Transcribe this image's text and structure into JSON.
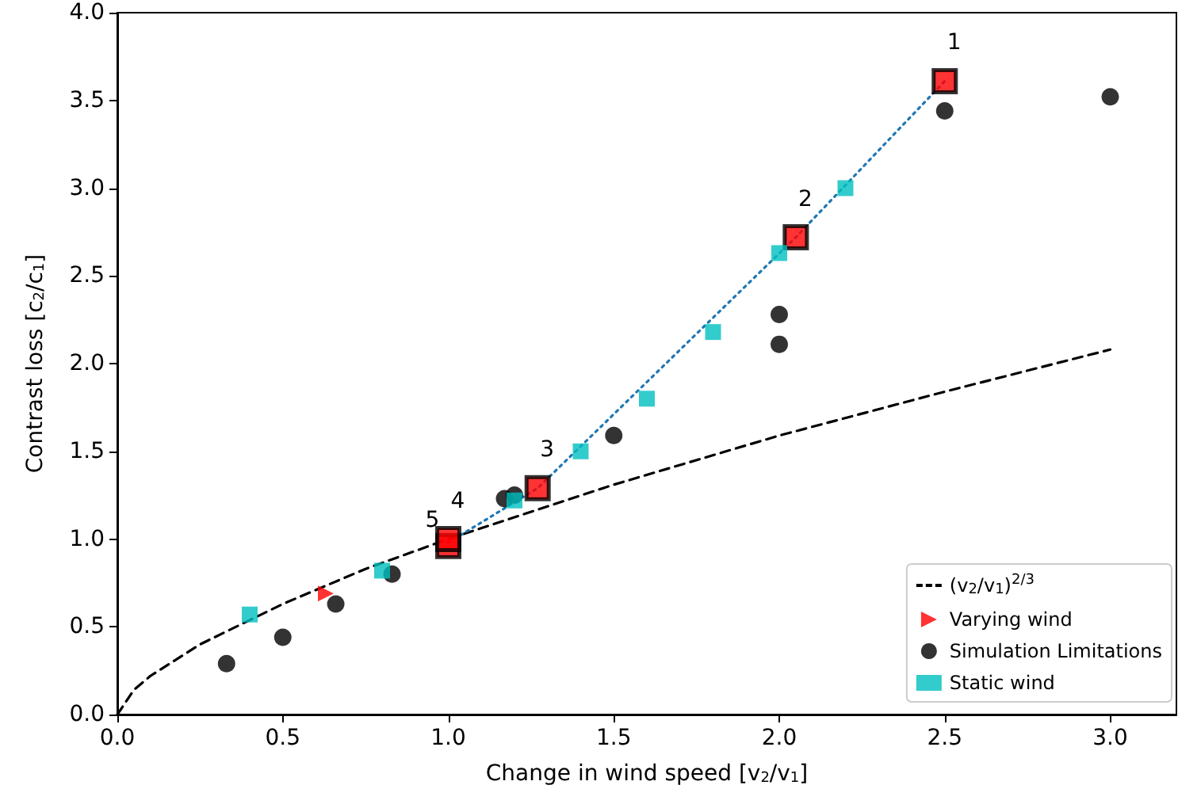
{
  "chart_data": {
    "type": "scatter",
    "xlabel": "Change in wind speed [v$_{2}$/v$_{1}$]",
    "ylabel": "Contrast loss [c$_{2}$/c$_{1}$]",
    "xlim": [
      0,
      3.2
    ],
    "ylim": [
      0,
      4
    ],
    "xticks": [
      {
        "value": 0,
        "label": "0.0"
      },
      {
        "value": 0.5,
        "label": "0.5"
      },
      {
        "value": 1,
        "label": "1.0"
      },
      {
        "value": 1.5,
        "label": "1.5"
      },
      {
        "value": 2,
        "label": "2.0"
      },
      {
        "value": 2.5,
        "label": "2.5"
      },
      {
        "value": 3,
        "label": "3.0"
      }
    ],
    "yticks": [
      {
        "value": 0,
        "label": "0.0"
      },
      {
        "value": 0.5,
        "label": "0.5"
      },
      {
        "value": 1,
        "label": "1.0"
      },
      {
        "value": 1.5,
        "label": "1.5"
      },
      {
        "value": 2,
        "label": "2.0"
      },
      {
        "value": 2.5,
        "label": "2.5"
      },
      {
        "value": 3,
        "label": "3.0"
      },
      {
        "value": 3.5,
        "label": "3.5"
      },
      {
        "value": 4,
        "label": "4.0"
      }
    ],
    "grid": false,
    "legend": "bottom right",
    "series": [
      {
        "name": "(v$_{2}$/v$_{1}$)$^{2/3}$",
        "type": "line",
        "line_style": "dashed",
        "marker": "none",
        "color": "#000000",
        "x": [
          0,
          0.05,
          0.1,
          0.25,
          0.5,
          0.75,
          1,
          1.5,
          2,
          2.5,
          3
        ],
        "values": [
          0,
          0.14,
          0.22,
          0.4,
          0.63,
          0.83,
          1,
          1.31,
          1.59,
          1.84,
          2.08
        ]
      },
      {
        "type": "line",
        "line_style": "dotted",
        "marker": "none",
        "color": "#1f77b4",
        "x": [
          1,
          1.27,
          2.05,
          2.5
        ],
        "values": [
          0.98,
          1.29,
          2.72,
          3.61
        ]
      },
      {
        "marker": "square",
        "color": "#ff0000",
        "x": [
          1,
          1,
          1.27,
          2.05,
          2.5
        ],
        "values": [
          0.96,
          1.0,
          1.29,
          2.72,
          3.61
        ]
      },
      {
        "name": "Varying wind",
        "marker": "triangle",
        "color": "#ff0000",
        "x": [
          0.63
        ],
        "values": [
          0.69
        ]
      },
      {
        "name": "Simulation Limitations",
        "marker": "circle",
        "color": "#000000",
        "x": [
          0.33,
          0.5,
          0.66,
          0.83,
          1.17,
          1.2,
          1.5,
          2,
          2,
          2.5,
          3
        ],
        "values": [
          0.29,
          0.44,
          0.63,
          0.8,
          1.23,
          1.25,
          1.59,
          2.28,
          2.11,
          3.44,
          3.52
        ]
      },
      {
        "name": "Static wind",
        "marker": "square",
        "color": "#00bfbf",
        "x": [
          0.4,
          0.8,
          1.2,
          1.4,
          1.6,
          1.8,
          2,
          2.2
        ],
        "values": [
          0.57,
          0.82,
          1.22,
          1.5,
          1.8,
          2.18,
          2.63,
          3.0
        ]
      }
    ],
    "annotations": [
      {
        "text": "1",
        "x": 2.5,
        "y": 3.61
      },
      {
        "text": "2",
        "x": 2.05,
        "y": 2.72
      },
      {
        "text": "3",
        "x": 1.27,
        "y": 1.29
      },
      {
        "text": "4",
        "x": 1,
        "y": 1.0
      },
      {
        "text": "5",
        "x": 1,
        "y": 0.96
      }
    ]
  }
}
